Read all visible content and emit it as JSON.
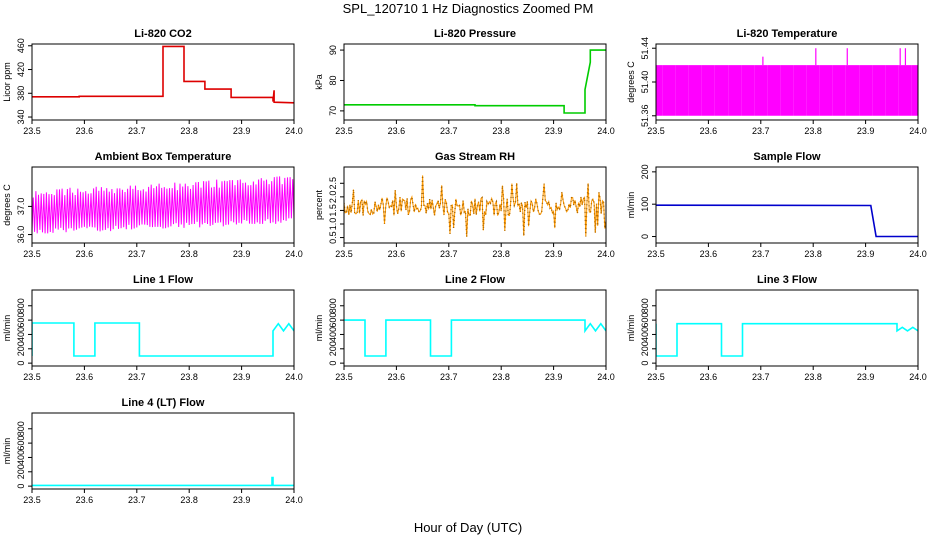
{
  "figure": {
    "title": "SPL_120710  1 Hz Diagnostics Zoomed PM",
    "xlabel": "Hour of Day (UTC)"
  },
  "chart_data": [
    {
      "type": "line",
      "title": "Li-820 CO2",
      "xlabel": "",
      "ylabel": "Licor ppm",
      "color": "#dd0000",
      "xlim": [
        23.5,
        24.0
      ],
      "ylim": [
        335,
        463
      ],
      "xticks": [
        "23.5",
        "23.6",
        "23.7",
        "23.8",
        "23.9",
        "24.0"
      ],
      "yticks": [
        "340",
        "380",
        "420",
        "460"
      ],
      "series": [
        {
          "x": [
            23.5,
            23.59,
            23.59,
            23.75,
            23.75,
            23.79,
            23.79,
            23.83,
            23.83,
            23.88,
            23.88,
            23.96,
            23.96,
            23.962,
            23.962,
            24.0
          ],
          "y": [
            374,
            374,
            375,
            375,
            459,
            459,
            400,
            400,
            387,
            387,
            373,
            373,
            366,
            385,
            365,
            364
          ]
        }
      ]
    },
    {
      "type": "line",
      "title": "Li-820 Pressure",
      "xlabel": "",
      "ylabel": "kPa",
      "color": "#00cc00",
      "xlim": [
        23.5,
        24.0
      ],
      "ylim": [
        67,
        92
      ],
      "xticks": [
        "23.5",
        "23.6",
        "23.7",
        "23.8",
        "23.9",
        "24.0"
      ],
      "yticks": [
        "70",
        "80",
        "90"
      ],
      "series": [
        {
          "x": [
            23.5,
            23.75,
            23.75,
            23.92,
            23.92,
            23.96,
            23.96,
            23.97,
            23.97,
            24.0
          ],
          "y": [
            72,
            72,
            71.7,
            71.7,
            69.3,
            69.3,
            77,
            86,
            90,
            90
          ]
        }
      ]
    },
    {
      "type": "line",
      "title": "Li-820 Temperature",
      "xlabel": "",
      "ylabel": "degrees C",
      "color": "#ff00ff",
      "xlim": [
        23.5,
        24.0
      ],
      "ylim": [
        51.355,
        51.445
      ],
      "xticks": [
        "23.5",
        "23.6",
        "23.7",
        "23.8",
        "23.9",
        "24.0"
      ],
      "yticks": [
        "51.36",
        "51.40",
        "51.44"
      ],
      "band": {
        "low": 51.36,
        "high": 51.42
      },
      "spikes": [
        {
          "x": 23.704,
          "y": 51.43
        },
        {
          "x": 23.805,
          "y": 51.44
        },
        {
          "x": 23.865,
          "y": 51.44
        },
        {
          "x": 23.966,
          "y": 51.44
        },
        {
          "x": 23.976,
          "y": 51.44
        }
      ]
    },
    {
      "type": "line",
      "title": "Ambient Box Temperature",
      "xlabel": "",
      "ylabel": "degrees C",
      "color": "#ff00ff",
      "xlim": [
        23.5,
        24.0
      ],
      "ylim": [
        35.7,
        38.4
      ],
      "xticks": [
        "23.5",
        "23.6",
        "23.7",
        "23.8",
        "23.9",
        "24.0"
      ],
      "yticks": [
        "36.0",
        "37.0"
      ],
      "band": {
        "low_start": 36.2,
        "low_end": 36.6,
        "high_start": 37.3,
        "high_end": 37.8
      }
    },
    {
      "type": "line",
      "title": "Gas Stream RH",
      "xlabel": "",
      "ylabel": "percent",
      "color": "#ff9900",
      "xlim": [
        23.5,
        24.0
      ],
      "ylim": [
        0.3,
        3.1
      ],
      "xticks": [
        "23.5",
        "23.6",
        "23.7",
        "23.8",
        "23.9",
        "24.0"
      ],
      "yticks": [
        "0.5",
        "1.0",
        "1.5",
        "2.0",
        "2.5"
      ],
      "band": {
        "low": 1.3,
        "high": 2.0
      }
    },
    {
      "type": "line",
      "title": "Sample Flow",
      "xlabel": "",
      "ylabel": "ml/min",
      "color": "#0000cc",
      "xlim": [
        23.5,
        24.0
      ],
      "ylim": [
        -20,
        215
      ],
      "xticks": [
        "23.5",
        "23.6",
        "23.7",
        "23.8",
        "23.9",
        "24.0"
      ],
      "yticks": [
        "0",
        "100",
        "200"
      ],
      "series": [
        {
          "x": [
            23.5,
            23.91,
            23.91,
            23.92,
            24.0
          ],
          "y": [
            97,
            96,
            96,
            0,
            0
          ]
        }
      ]
    },
    {
      "type": "line",
      "title": "Line 1 Flow",
      "xlabel": "",
      "ylabel": "ml/min",
      "color": "#00ffff",
      "xlim": [
        23.5,
        24.0
      ],
      "ylim": [
        -40,
        1020
      ],
      "xticks": [
        "23.5",
        "23.6",
        "23.7",
        "23.8",
        "23.9",
        "24.0"
      ],
      "yticks": [
        "0",
        "200",
        "400",
        "600",
        "800"
      ],
      "series": [
        {
          "x": [
            23.5,
            23.5,
            23.58,
            23.58,
            23.62,
            23.62,
            23.705,
            23.705,
            23.96,
            23.96,
            23.97,
            23.98,
            23.99,
            24.0
          ],
          "y": [
            100,
            560,
            560,
            100,
            100,
            560,
            560,
            100,
            100,
            450,
            550,
            450,
            550,
            450
          ]
        }
      ]
    },
    {
      "type": "line",
      "title": "Line 2 Flow",
      "xlabel": "",
      "ylabel": "ml/min",
      "color": "#00ffff",
      "xlim": [
        23.5,
        24.0
      ],
      "ylim": [
        -40,
        1020
      ],
      "xticks": [
        "23.5",
        "23.6",
        "23.7",
        "23.8",
        "23.9",
        "24.0"
      ],
      "yticks": [
        "0",
        "200",
        "400",
        "600",
        "800"
      ],
      "series": [
        {
          "x": [
            23.5,
            23.54,
            23.54,
            23.58,
            23.58,
            23.665,
            23.665,
            23.705,
            23.705,
            23.96,
            23.96,
            23.97,
            23.98,
            23.99,
            24.0
          ],
          "y": [
            600,
            600,
            100,
            100,
            600,
            600,
            100,
            100,
            600,
            600,
            450,
            550,
            450,
            550,
            450
          ]
        }
      ]
    },
    {
      "type": "line",
      "title": "Line 3 Flow",
      "xlabel": "",
      "ylabel": "ml/min",
      "color": "#00ffff",
      "xlim": [
        23.5,
        24.0
      ],
      "ylim": [
        -40,
        1020
      ],
      "xticks": [
        "23.5",
        "23.6",
        "23.7",
        "23.8",
        "23.9",
        "24.0"
      ],
      "yticks": [
        "0",
        "200",
        "400",
        "600",
        "800"
      ],
      "series": [
        {
          "x": [
            23.5,
            23.5,
            23.54,
            23.54,
            23.625,
            23.625,
            23.665,
            23.665,
            23.96,
            23.96,
            23.97,
            23.98,
            23.99,
            24.0
          ],
          "y": [
            550,
            100,
            100,
            550,
            550,
            100,
            100,
            550,
            550,
            450,
            500,
            450,
            500,
            450
          ]
        }
      ]
    },
    {
      "type": "line",
      "title": "Line 4 (LT) Flow",
      "xlabel": "",
      "ylabel": "ml/min",
      "color": "#00ffff",
      "xlim": [
        23.5,
        24.0
      ],
      "ylim": [
        -40,
        1020
      ],
      "xticks": [
        "23.5",
        "23.6",
        "23.7",
        "23.8",
        "23.9",
        "24.0"
      ],
      "yticks": [
        "0",
        "200",
        "400",
        "600",
        "800"
      ],
      "series": [
        {
          "x": [
            23.5,
            23.958,
            23.958,
            23.96,
            23.96,
            24.0
          ],
          "y": [
            10,
            10,
            120,
            120,
            10,
            10
          ]
        }
      ]
    }
  ]
}
